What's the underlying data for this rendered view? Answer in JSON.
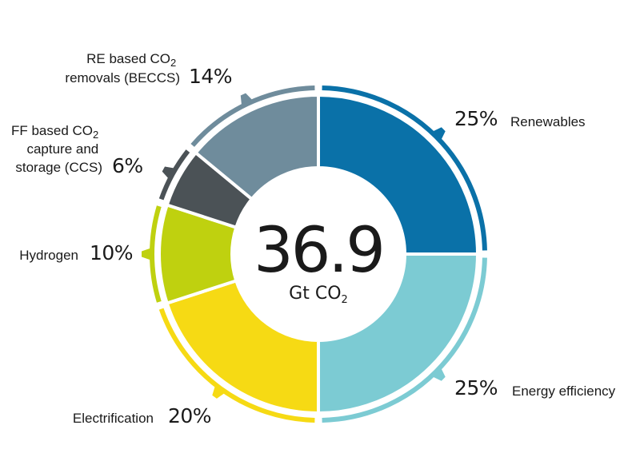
{
  "chart_data": {
    "type": "pie",
    "variant": "donut",
    "center_value": "36.9",
    "center_unit": "Gt CO",
    "center_unit_sub": "2",
    "slices": [
      {
        "label": "Renewables",
        "value": 25,
        "pct_label": "25%",
        "color": "#0a71a8"
      },
      {
        "label": "Energy efficiency",
        "value": 25,
        "pct_label": "25%",
        "color": "#7ccbd3"
      },
      {
        "label": "Electrification",
        "value": 20,
        "pct_label": "20%",
        "color": "#f6da14"
      },
      {
        "label": "Hydrogen",
        "value": 10,
        "pct_label": "10%",
        "color": "#bfd10f"
      },
      {
        "label_lines": [
          "FF based CO",
          "capture and",
          "storage (CCS)"
        ],
        "label_sub": "2",
        "value": 6,
        "pct_label": "6%",
        "color": "#4b5256"
      },
      {
        "label_lines": [
          "RE based CO",
          "removals (BECCS)"
        ],
        "label_sub": "2",
        "value": 14,
        "pct_label": "14%",
        "color": "#6f8c9c"
      }
    ]
  }
}
